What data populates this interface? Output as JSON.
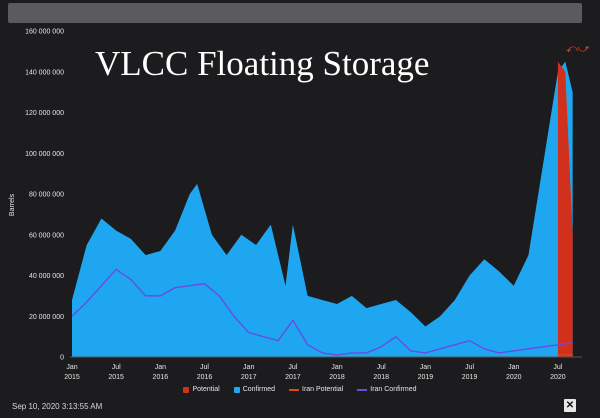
{
  "chart_data": {
    "type": "area",
    "title": "VLCC Floating Storage",
    "ylabel": "Barrels",
    "xlabel": "",
    "ylim": [
      0,
      160000000
    ],
    "y_ticks": [
      "0",
      "20 000 000",
      "40 000 000",
      "60 000 000",
      "80 000 000",
      "100 000 000",
      "120 000 000",
      "140 000 000",
      "160 000 000"
    ],
    "x_ticks": [
      {
        "month": "Jan",
        "year": "2015"
      },
      {
        "month": "Jul",
        "year": "2015"
      },
      {
        "month": "Jan",
        "year": "2016"
      },
      {
        "month": "Jul",
        "year": "2016"
      },
      {
        "month": "Jan",
        "year": "2017"
      },
      {
        "month": "Jul",
        "year": "2017"
      },
      {
        "month": "Jan",
        "year": "2018"
      },
      {
        "month": "Jul",
        "year": "2018"
      },
      {
        "month": "Jan",
        "year": "2019"
      },
      {
        "month": "Jul",
        "year": "2019"
      },
      {
        "month": "Jan",
        "year": "2020"
      },
      {
        "month": "Jul",
        "year": "2020"
      }
    ],
    "legend": [
      "Potential",
      "Confirmed",
      "Iran Potential",
      "Iran Confirmed"
    ],
    "legend_placement": "bottom",
    "grid": false,
    "colors": {
      "Confirmed": "#1ea7f0",
      "Potential": "#d0301c",
      "Iran Potential": "#e0481e",
      "Iran Confirmed": "#6a4be0"
    },
    "series": [
      {
        "name": "Confirmed",
        "x": [
          "2015-01",
          "2015-03",
          "2015-05",
          "2015-07",
          "2015-09",
          "2015-11",
          "2016-01",
          "2016-03",
          "2016-05",
          "2016-06",
          "2016-08",
          "2016-10",
          "2016-12",
          "2017-02",
          "2017-04",
          "2017-06",
          "2017-07",
          "2017-09",
          "2017-11",
          "2018-01",
          "2018-03",
          "2018-05",
          "2018-07",
          "2018-09",
          "2018-11",
          "2019-01",
          "2019-03",
          "2019-05",
          "2019-07",
          "2019-09",
          "2019-11",
          "2020-01",
          "2020-03",
          "2020-05",
          "2020-07",
          "2020-08",
          "2020-09"
        ],
        "values": [
          28000000,
          55000000,
          68000000,
          62000000,
          58000000,
          50000000,
          52000000,
          62000000,
          80000000,
          85000000,
          60000000,
          50000000,
          60000000,
          55000000,
          65000000,
          35000000,
          65000000,
          30000000,
          28000000,
          26000000,
          30000000,
          24000000,
          26000000,
          28000000,
          22000000,
          15000000,
          20000000,
          28000000,
          40000000,
          48000000,
          42000000,
          35000000,
          50000000,
          95000000,
          140000000,
          145000000,
          130000000
        ]
      },
      {
        "name": "Potential",
        "x": [
          "2020-07",
          "2020-08",
          "2020-09"
        ],
        "values": [
          145000000,
          140000000,
          60000000
        ]
      },
      {
        "name": "Iran Confirmed",
        "x": [
          "2015-01",
          "2015-03",
          "2015-05",
          "2015-07",
          "2015-09",
          "2015-11",
          "2016-01",
          "2016-03",
          "2016-05",
          "2016-07",
          "2016-09",
          "2016-11",
          "2017-01",
          "2017-03",
          "2017-05",
          "2017-07",
          "2017-09",
          "2017-11",
          "2018-01",
          "2018-03",
          "2018-05",
          "2018-07",
          "2018-09",
          "2018-11",
          "2019-01",
          "2019-03",
          "2019-05",
          "2019-07",
          "2019-09",
          "2019-11",
          "2020-01",
          "2020-03",
          "2020-05",
          "2020-07",
          "2020-09"
        ],
        "values": [
          20000000,
          27000000,
          35000000,
          43000000,
          38000000,
          30000000,
          30000000,
          34000000,
          35000000,
          36000000,
          30000000,
          20000000,
          12000000,
          10000000,
          8000000,
          18000000,
          6000000,
          2000000,
          1000000,
          2000000,
          2000000,
          5000000,
          10000000,
          3000000,
          2000000,
          4000000,
          6000000,
          8000000,
          4000000,
          2000000,
          3000000,
          4000000,
          5000000,
          6000000,
          7000000
        ]
      },
      {
        "name": "Iran Potential",
        "x": [
          "2020-07",
          "2020-09"
        ],
        "values": [
          1000000,
          1000000
        ]
      }
    ]
  },
  "footer": {
    "timestamp": "Sep 10, 2020 3:13:55 AM",
    "export_icon": "close-x-icon"
  }
}
